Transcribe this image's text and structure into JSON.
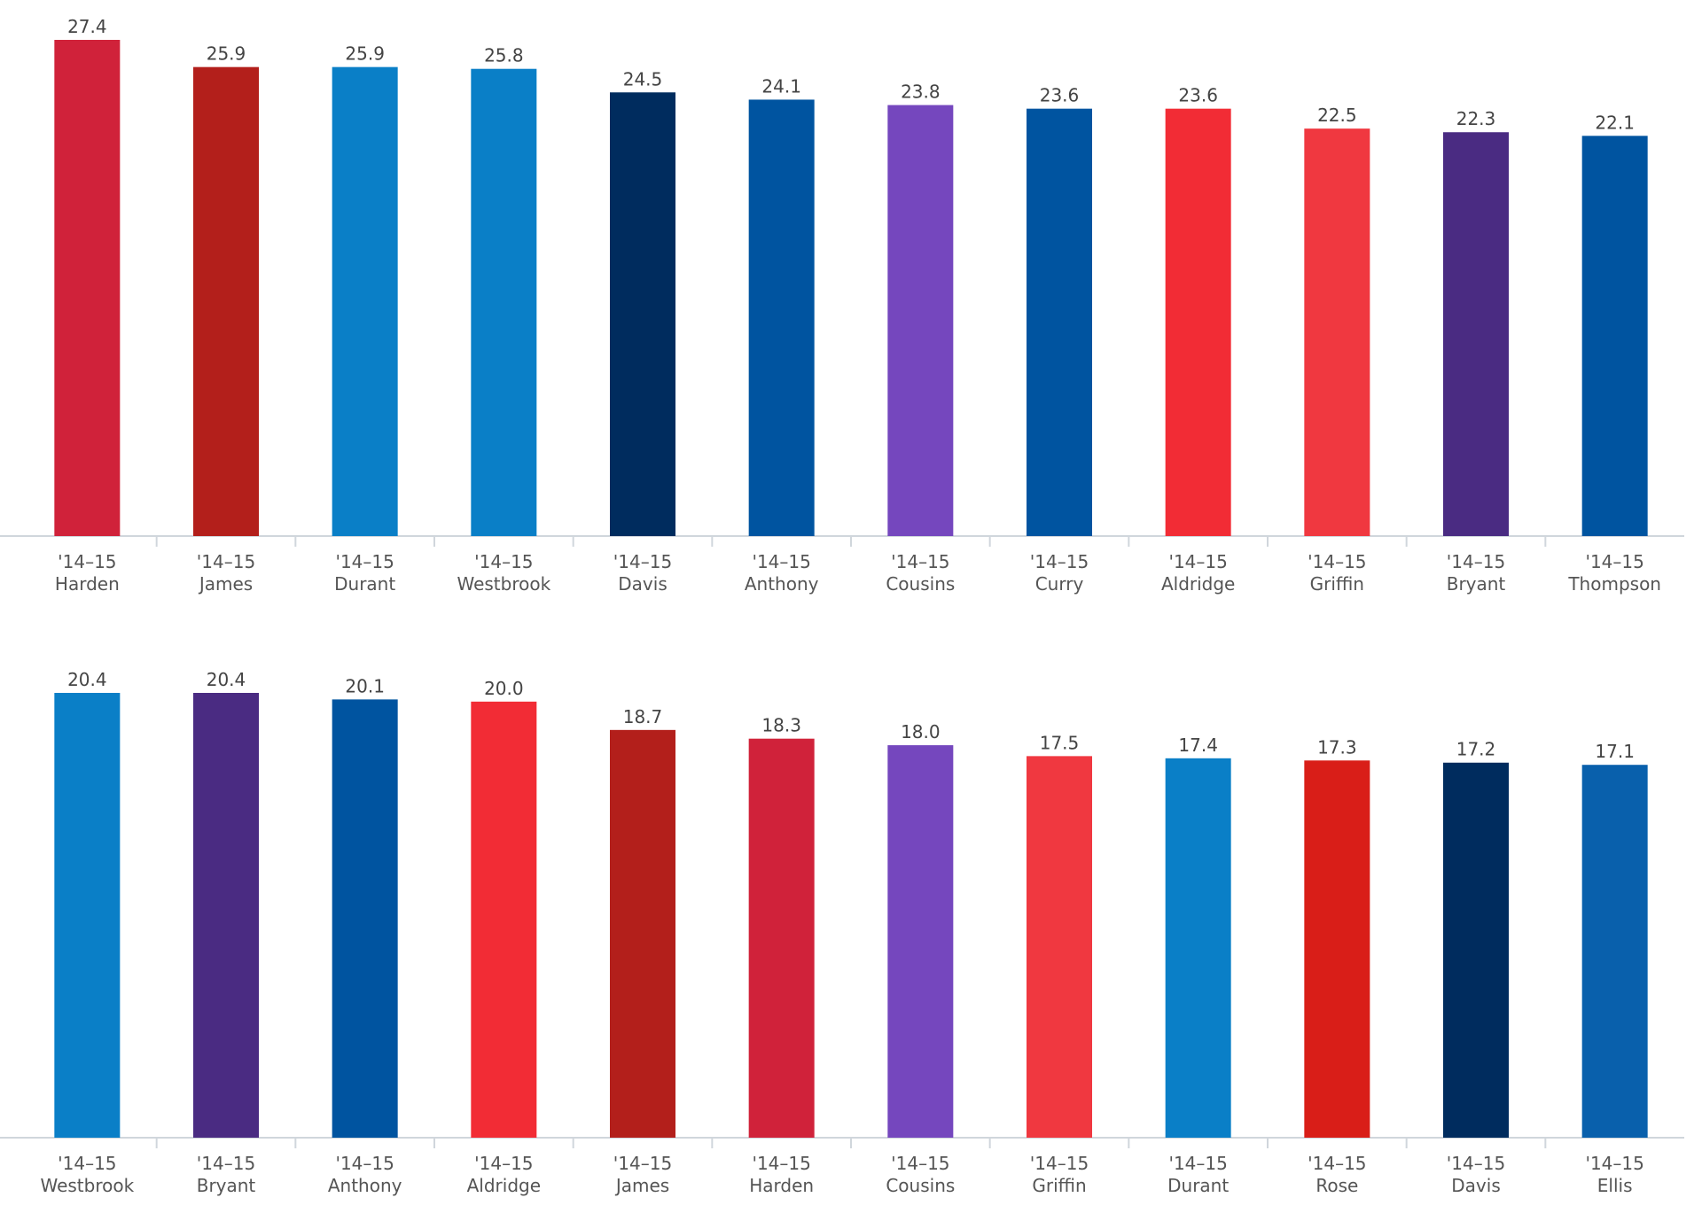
{
  "chart_data": [
    {
      "type": "bar",
      "categories": [
        {
          "season": "'14–15",
          "player": "Harden"
        },
        {
          "season": "'14–15",
          "player": "James"
        },
        {
          "season": "'14–15",
          "player": "Durant"
        },
        {
          "season": "'14–15",
          "player": "Westbrook"
        },
        {
          "season": "'14–15",
          "player": "Davis"
        },
        {
          "season": "'14–15",
          "player": "Anthony"
        },
        {
          "season": "'14–15",
          "player": "Cousins"
        },
        {
          "season": "'14–15",
          "player": "Curry"
        },
        {
          "season": "'14–15",
          "player": "Aldridge"
        },
        {
          "season": "'14–15",
          "player": "Griffin"
        },
        {
          "season": "'14–15",
          "player": "Bryant"
        },
        {
          "season": "'14–15",
          "player": "Thompson"
        }
      ],
      "values": [
        27.4,
        25.9,
        25.9,
        25.8,
        24.5,
        24.1,
        23.8,
        23.6,
        23.6,
        22.5,
        22.3,
        22.1
      ],
      "value_labels": [
        "27.4",
        "25.9",
        "25.9",
        "25.8",
        "24.5",
        "24.1",
        "23.8",
        "23.6",
        "23.6",
        "22.5",
        "22.3",
        "22.1"
      ],
      "colors": [
        "#d0223a",
        "#b31f1b",
        "#0a7fc7",
        "#0a7fc7",
        "#002c5e",
        "#0054a0",
        "#7547be",
        "#0054a0",
        "#f22c35",
        "#f03840",
        "#4a2b82",
        "#0054a0"
      ],
      "ylim": [
        0,
        27.4
      ],
      "grid": false
    },
    {
      "type": "bar",
      "categories": [
        {
          "season": "'14–15",
          "player": "Westbrook"
        },
        {
          "season": "'14–15",
          "player": "Bryant"
        },
        {
          "season": "'14–15",
          "player": "Anthony"
        },
        {
          "season": "'14–15",
          "player": "Aldridge"
        },
        {
          "season": "'14–15",
          "player": "James"
        },
        {
          "season": "'14–15",
          "player": "Harden"
        },
        {
          "season": "'14–15",
          "player": "Cousins"
        },
        {
          "season": "'14–15",
          "player": "Griffin"
        },
        {
          "season": "'14–15",
          "player": "Durant"
        },
        {
          "season": "'14–15",
          "player": "Rose"
        },
        {
          "season": "'14–15",
          "player": "Davis"
        },
        {
          "season": "'14–15",
          "player": "Ellis"
        }
      ],
      "values": [
        20.4,
        20.4,
        20.1,
        20.0,
        18.7,
        18.3,
        18.0,
        17.5,
        17.4,
        17.3,
        17.2,
        17.1
      ],
      "value_labels": [
        "20.4",
        "20.4",
        "20.1",
        "20.0",
        "18.7",
        "18.3",
        "18.0",
        "17.5",
        "17.4",
        "17.3",
        "17.2",
        "17.1"
      ],
      "colors": [
        "#0a7fc7",
        "#4a2b82",
        "#0054a0",
        "#f22c35",
        "#b31f1b",
        "#d0223a",
        "#7547be",
        "#f03840",
        "#0a7fc7",
        "#d91e18",
        "#002c5e",
        "#0960ac"
      ],
      "ylim": [
        0,
        20.4
      ],
      "grid": false
    }
  ]
}
